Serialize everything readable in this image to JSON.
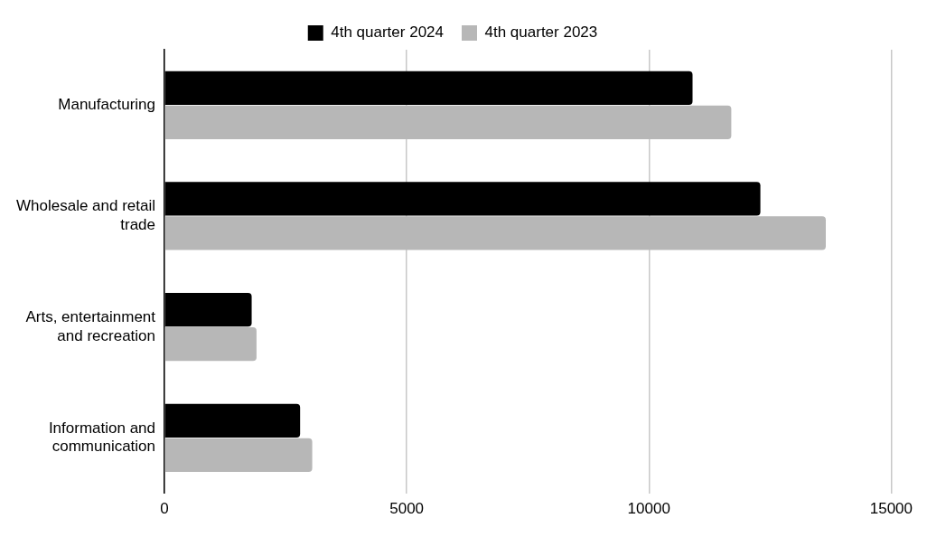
{
  "chart_data": {
    "type": "bar",
    "orientation": "horizontal",
    "categories": [
      "Manufacturing",
      "Wholesale and retail trade",
      "Arts, entertainment and recreation",
      "Information and communication"
    ],
    "series": [
      {
        "name": "4th quarter 2024",
        "color": "#000000",
        "values": [
          10900,
          12300,
          1800,
          2800
        ]
      },
      {
        "name": "4th quarter 2023",
        "color": "#b7b7b7",
        "values": [
          11700,
          13650,
          1900,
          3050
        ]
      }
    ],
    "xlim": [
      0,
      15000
    ],
    "xticks": [
      0,
      5000,
      10000,
      15000
    ],
    "grid": "x",
    "legend": "top"
  }
}
